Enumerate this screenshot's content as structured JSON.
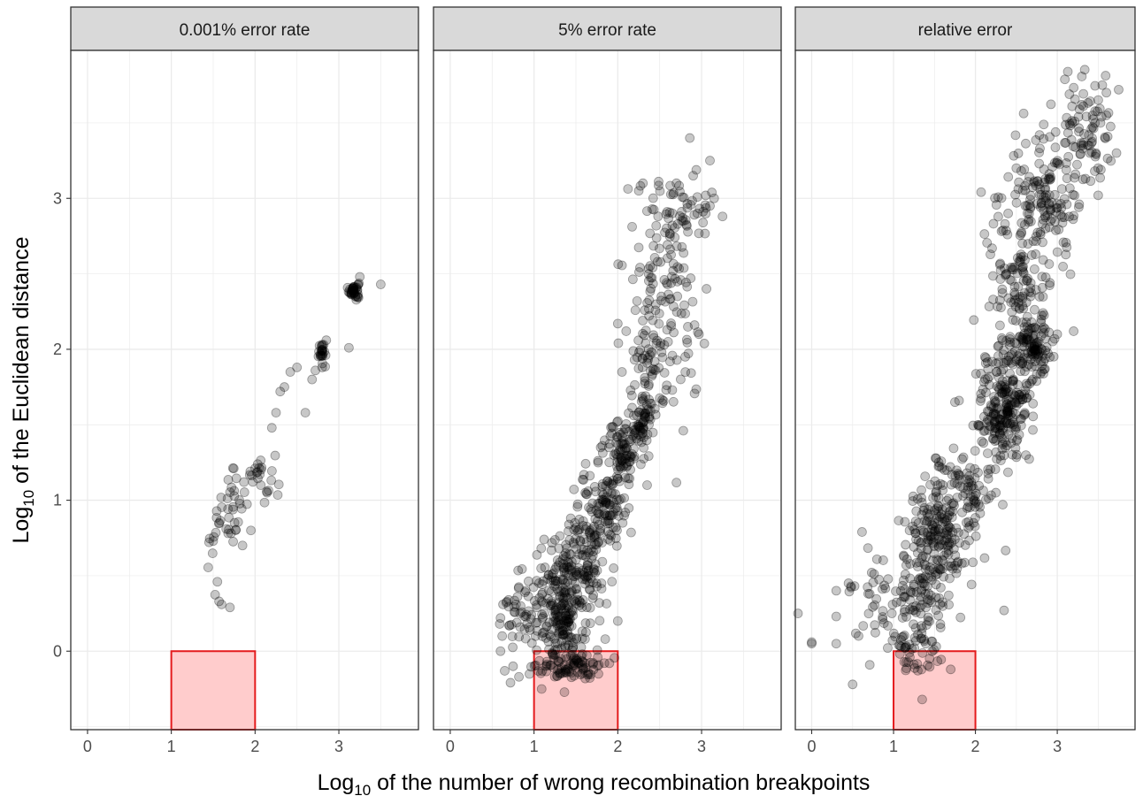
{
  "chart_data": {
    "type": "scatter",
    "xlabel": "Log10 of the number of wrong recombination breakpoints",
    "ylabel": "Log10 of the Euclidean distance",
    "xlabel_parts": {
      "pre": "Log",
      "sub": "10",
      "post": " of the number of wrong recombination breakpoints"
    },
    "ylabel_parts": {
      "pre": "Log",
      "sub": "10",
      "post": " of the Euclidean distance"
    },
    "xlim": [
      -0.2,
      3.95
    ],
    "ylim": [
      -0.52,
      3.98
    ],
    "x_ticks": [
      0,
      1,
      2,
      3
    ],
    "x_tick_labels": [
      "0",
      "1",
      "2",
      "3"
    ],
    "y_ticks": [
      0,
      1,
      2,
      3
    ],
    "y_tick_labels": [
      "0",
      "1",
      "2",
      "3"
    ],
    "grid": true,
    "point_color": "#000000",
    "point_opacity": 0.22,
    "highlight_region": {
      "x": [
        1,
        2
      ],
      "y": [
        -0.52,
        0
      ],
      "fill": "#ffcccc",
      "stroke": "#e41a1c"
    },
    "facets": [
      {
        "strip_label": "0.001% error rate",
        "clusters": [
          {
            "cx": 3.18,
            "cy": 2.39,
            "sx": 0.03,
            "sy": 0.03,
            "n": 38
          },
          {
            "cx": 2.8,
            "cy": 1.98,
            "sx": 0.025,
            "sy": 0.035,
            "n": 24
          },
          {
            "cx": 2.05,
            "cy": 1.18,
            "sx": 0.09,
            "sy": 0.09,
            "n": 26
          },
          {
            "cx": 1.7,
            "cy": 0.95,
            "sx": 0.1,
            "sy": 0.12,
            "n": 32
          },
          {
            "cx": 1.5,
            "cy": 0.68,
            "sx": 0.05,
            "sy": 0.1,
            "n": 8
          }
        ],
        "points": [
          [
            3.5,
            2.43
          ],
          [
            3.12,
            2.01
          ],
          [
            2.6,
            1.58
          ],
          [
            2.5,
            1.88
          ],
          [
            2.42,
            1.85
          ],
          [
            2.35,
            1.75
          ],
          [
            2.3,
            1.72
          ],
          [
            2.25,
            1.58
          ],
          [
            2.2,
            1.48
          ],
          [
            1.55,
            0.46
          ],
          [
            1.57,
            0.33
          ],
          [
            1.6,
            0.31
          ],
          [
            1.7,
            0.29
          ],
          [
            1.5,
            0.73
          ],
          [
            1.95,
            0.8
          ],
          [
            2.68,
            1.8
          ],
          [
            2.72,
            1.86
          ],
          [
            3.25,
            2.48
          ],
          [
            2.85,
            2.06
          ],
          [
            1.85,
            0.7
          ]
        ]
      },
      {
        "strip_label": "5% error rate",
        "clusters": [
          {
            "cx": 1.45,
            "cy": -0.1,
            "sx": 0.2,
            "sy": 0.05,
            "n": 80
          },
          {
            "cx": 1.3,
            "cy": 0.25,
            "sx": 0.18,
            "sy": 0.2,
            "n": 220
          },
          {
            "cx": 1.55,
            "cy": 0.6,
            "sx": 0.16,
            "sy": 0.15,
            "n": 130
          },
          {
            "cx": 1.8,
            "cy": 0.95,
            "sx": 0.14,
            "sy": 0.12,
            "n": 100
          },
          {
            "cx": 2.05,
            "cy": 1.3,
            "sx": 0.12,
            "sy": 0.12,
            "n": 100
          },
          {
            "cx": 2.3,
            "cy": 1.55,
            "sx": 0.08,
            "sy": 0.1,
            "n": 60
          },
          {
            "cx": 2.55,
            "cy": 2.4,
            "sx": 0.22,
            "sy": 0.35,
            "n": 130
          },
          {
            "cx": 2.4,
            "cy": 1.9,
            "sx": 0.12,
            "sy": 0.15,
            "n": 40
          },
          {
            "cx": 2.75,
            "cy": 2.9,
            "sx": 0.2,
            "sy": 0.12,
            "n": 40
          },
          {
            "cx": 0.85,
            "cy": 0.3,
            "sx": 0.12,
            "sy": 0.15,
            "n": 40
          }
        ],
        "points": [
          [
            0.6,
            0.22
          ],
          [
            0.62,
            0.1
          ],
          [
            0.6,
            0.0
          ],
          [
            0.75,
            -0.1
          ],
          [
            0.65,
            -0.13
          ],
          [
            0.82,
            -0.17
          ],
          [
            0.63,
            0.31
          ],
          [
            2.95,
            2.9
          ],
          [
            3.1,
            2.95
          ],
          [
            3.25,
            2.88
          ],
          [
            3.15,
            3.0
          ],
          [
            3.1,
            3.25
          ],
          [
            2.9,
            3.15
          ],
          [
            2.7,
            3.1
          ],
          [
            2.0,
            2.17
          ],
          [
            2.05,
            1.85
          ],
          [
            2.35,
            1.1
          ],
          [
            2.65,
            1.73
          ],
          [
            2.6,
            2.05
          ],
          [
            2.0,
            0.2
          ],
          [
            1.85,
            0.08
          ],
          [
            1.9,
            -0.08
          ],
          [
            1.78,
            0.32
          ],
          [
            1.95,
            0.55
          ],
          [
            2.1,
            2.12
          ],
          [
            2.25,
            3.05
          ],
          [
            2.3,
            3.1
          ]
        ]
      },
      {
        "strip_label": "relative error",
        "clusters": [
          {
            "cx": 2.35,
            "cy": 1.6,
            "sx": 0.16,
            "sy": 0.18,
            "n": 220
          },
          {
            "cx": 2.7,
            "cy": 2.0,
            "sx": 0.12,
            "sy": 0.1,
            "n": 110
          },
          {
            "cx": 2.5,
            "cy": 2.45,
            "sx": 0.2,
            "sy": 0.3,
            "n": 140
          },
          {
            "cx": 2.85,
            "cy": 3.0,
            "sx": 0.2,
            "sy": 0.22,
            "n": 130
          },
          {
            "cx": 3.3,
            "cy": 3.45,
            "sx": 0.17,
            "sy": 0.18,
            "n": 80
          },
          {
            "cx": 1.55,
            "cy": 0.75,
            "sx": 0.2,
            "sy": 0.2,
            "n": 180
          },
          {
            "cx": 1.9,
            "cy": 1.1,
            "sx": 0.18,
            "sy": 0.15,
            "n": 90
          },
          {
            "cx": 1.3,
            "cy": 0.35,
            "sx": 0.18,
            "sy": 0.15,
            "n": 90
          },
          {
            "cx": 1.25,
            "cy": 0.0,
            "sx": 0.15,
            "sy": 0.07,
            "n": 40
          },
          {
            "cx": 0.75,
            "cy": 0.35,
            "sx": 0.25,
            "sy": 0.2,
            "n": 40
          }
        ],
        "points": [
          [
            -0.2,
            0.25
          ],
          [
            0.0,
            0.05
          ],
          [
            0.0,
            0.06
          ],
          [
            0.3,
            0.05
          ],
          [
            0.3,
            0.23
          ],
          [
            0.5,
            -0.22
          ],
          [
            0.45,
            0.45
          ],
          [
            0.48,
            0.43
          ],
          [
            1.35,
            -0.32
          ],
          [
            2.35,
            0.27
          ],
          [
            1.75,
            1.65
          ],
          [
            1.8,
            1.66
          ],
          [
            3.0,
            2.1
          ],
          [
            3.2,
            2.12
          ],
          [
            3.75,
            3.72
          ],
          [
            3.6,
            3.7
          ],
          [
            3.55,
            3.75
          ],
          [
            3.6,
            3.55
          ],
          [
            3.4,
            3.3
          ],
          [
            3.5,
            3.2
          ],
          [
            3.5,
            3.02
          ],
          [
            2.7,
            1.8
          ],
          [
            2.85,
            1.87
          ],
          [
            2.25,
            1.05
          ],
          [
            2.0,
            0.98
          ],
          [
            2.4,
            2.9
          ],
          [
            2.5,
            3.2
          ]
        ]
      }
    ]
  }
}
